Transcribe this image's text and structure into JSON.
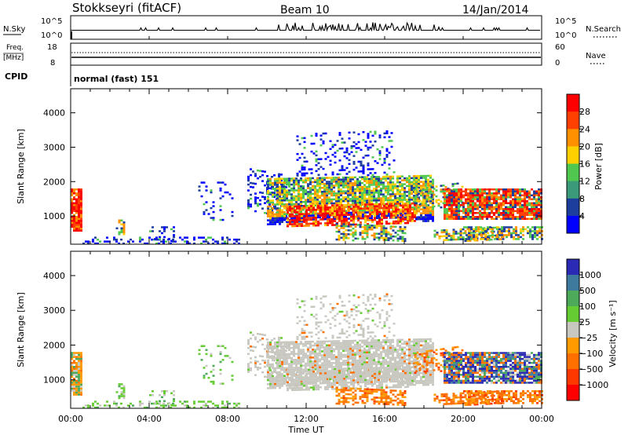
{
  "header": {
    "station": "Stokkseyri (fitACF)",
    "beam": "Beam 10",
    "date": "14/Jan/2014"
  },
  "top_panels": {
    "nsky_label": "N.Sky",
    "nsky_left_ticks": [
      "10^5",
      "10^0"
    ],
    "nsky_right_ticks": [
      "10^5",
      "10^0"
    ],
    "nsearch_label": "N.Search",
    "freq_label": "Freq.",
    "freq_unit": "[MHz]",
    "freq_ticks": [
      "18",
      "8"
    ],
    "nave_ticks": [
      "60",
      "0"
    ],
    "nave_label": "Nave",
    "cpid_label": "CPID",
    "cpid_value": "normal (fast) 151"
  },
  "chart_data": [
    {
      "type": "heatmap",
      "name": "power",
      "ylabel": "Slant Range [km]",
      "yticks": [
        1000,
        2000,
        3000,
        4000
      ],
      "ylim": [
        180,
        4700
      ],
      "xlim_hours": [
        0,
        24
      ],
      "xtick_labels": [
        "00:00",
        "04:00",
        "08:00",
        "12:00",
        "16:00",
        "20:00",
        "00:00"
      ],
      "colorbar_label": "Power [dB]",
      "colorbar_ticks": [
        "28",
        "24",
        "20",
        "16",
        "12",
        "8",
        "4"
      ],
      "colors": [
        "#ff0000",
        "#ff4000",
        "#ff9000",
        "#ffd000",
        "#50c850",
        "#3a9a7a",
        "#1e3e9e",
        "#0000ff"
      ]
    },
    {
      "type": "heatmap",
      "name": "velocity",
      "ylabel": "Slant Range [km]",
      "yticks": [
        1000,
        2000,
        3000,
        4000
      ],
      "ylim": [
        180,
        4700
      ],
      "xlim_hours": [
        0,
        24
      ],
      "xtick_labels": [
        "00:00",
        "04:00",
        "08:00",
        "12:00",
        "16:00",
        "20:00",
        "00:00"
      ],
      "xlabel": "Time UT",
      "colorbar_label": "Velocity [m s⁻¹]",
      "colorbar_ticks": [
        "1000",
        "500",
        "100",
        "25",
        "−25",
        "−100",
        "−500",
        "−1000"
      ],
      "colors": [
        "#2a2ab4",
        "#3e7a9e",
        "#4caa5a",
        "#66cc33",
        "#c8c8c0",
        "#ff9a00",
        "#ff7000",
        "#ff3800",
        "#ff0000"
      ]
    }
  ]
}
